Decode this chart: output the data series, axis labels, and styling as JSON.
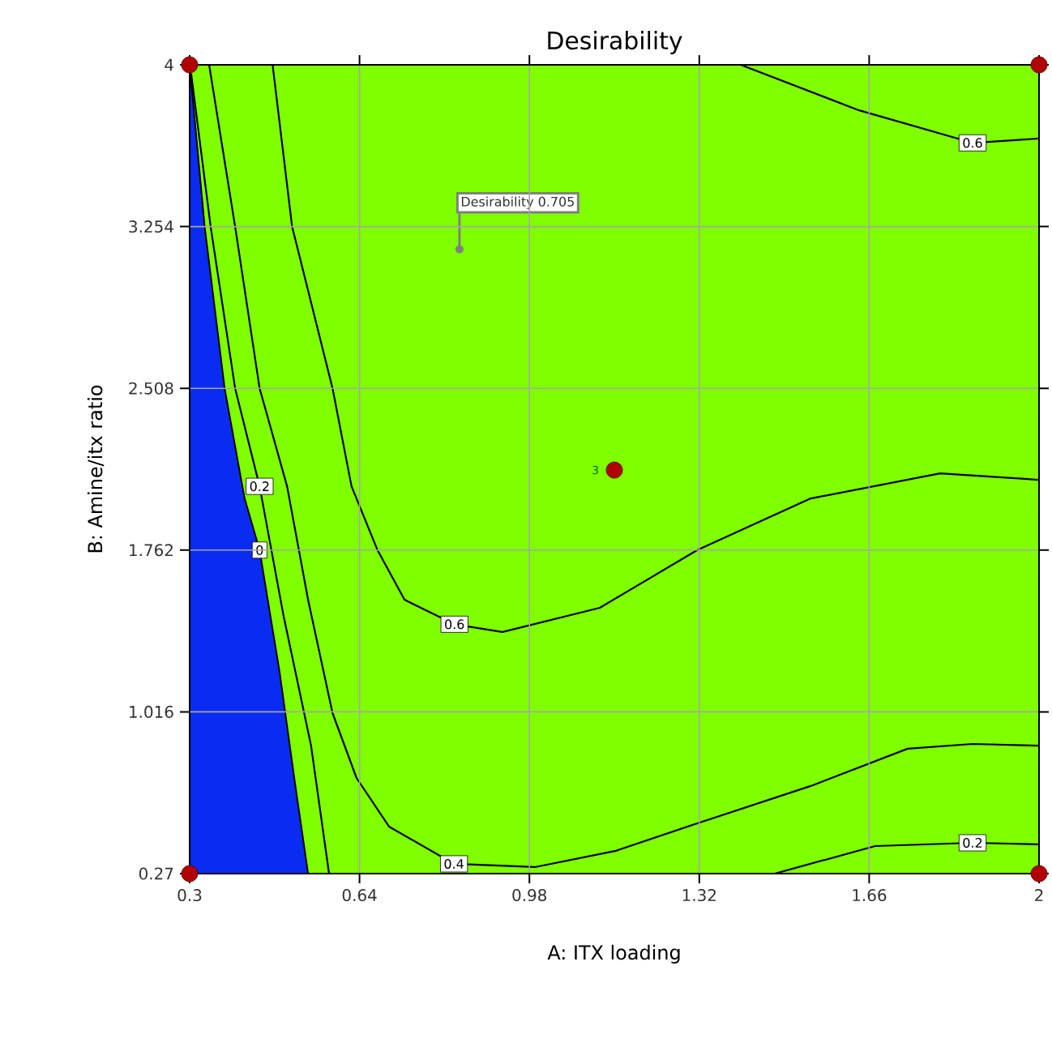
{
  "chart_data": {
    "type": "line",
    "title": "Desirability",
    "xlabel": "A: ITX loading",
    "ylabel": "B: Amine/itx ratio",
    "xlim": [
      0.3,
      2
    ],
    "ylim": [
      0.27,
      4
    ],
    "xticks": [
      0.3,
      0.64,
      0.98,
      1.32,
      1.66,
      2
    ],
    "yticks": [
      0.27,
      1.016,
      1.762,
      2.508,
      3.254,
      4
    ],
    "grid": true,
    "annotations": [
      {
        "text": "Desirability 0.705",
        "x": 0.84,
        "y": 3.15
      },
      {
        "text": "3",
        "x": 1.15,
        "y": 2.131
      }
    ],
    "series": [
      {
        "name": "0",
        "type": "area",
        "color": "#0a2cf0",
        "x": [
          0.3,
          0.33,
          0.37,
          0.41,
          0.44,
          0.48,
          0.51,
          0.537
        ],
        "values": [
          4,
          3.254,
          2.508,
          2.0,
          1.762,
          1.2,
          0.7,
          0.27
        ]
      },
      {
        "name": "0.2",
        "color": "#000000",
        "x": [
          0.303,
          0.342,
          0.391,
          0.44,
          0.488,
          0.543,
          0.579
        ],
        "values": [
          3.96,
          3.254,
          2.508,
          2.056,
          1.458,
          0.86,
          0.27
        ]
      },
      {
        "name": "0.2",
        "color": "#000000",
        "x": [
          1.471,
          1.672,
          1.867,
          2
        ],
        "values": [
          0.27,
          0.397,
          0.412,
          0.405
        ]
      },
      {
        "name": "0.4",
        "color": "#000000",
        "x": [
          0.339,
          0.391,
          0.44,
          0.495,
          0.537,
          0.586,
          0.634,
          0.699,
          0.829,
          0.991,
          1.153,
          1.316,
          1.543,
          1.737,
          1.867,
          2
        ],
        "values": [
          4,
          3.254,
          2.508,
          2.056,
          1.533,
          1.01,
          0.711,
          0.487,
          0.315,
          0.3,
          0.375,
          0.502,
          0.674,
          0.846,
          0.868,
          0.86
        ]
      },
      {
        "name": "0.6",
        "color": "#000000",
        "x": [
          0.466,
          0.505,
          0.586,
          0.624,
          0.676,
          0.73,
          0.83,
          0.926,
          1.121,
          1.316,
          1.543,
          1.802,
          2
        ],
        "values": [
          4,
          3.254,
          2.508,
          2.056,
          1.762,
          1.533,
          1.42,
          1.384,
          1.496,
          1.762,
          2.0,
          2.116,
          2.086
        ]
      },
      {
        "name": "0.6",
        "color": "#000000",
        "x": [
          1.403,
          1.64,
          1.867,
          2
        ],
        "values": [
          4,
          3.79,
          3.64,
          3.66
        ]
      },
      {
        "type": "scatter",
        "color": "#b00000",
        "x": [
          0.3,
          2,
          0.3,
          2,
          1.15
        ],
        "values": [
          4,
          4,
          0.27,
          0.27,
          2.131
        ]
      }
    ]
  }
}
